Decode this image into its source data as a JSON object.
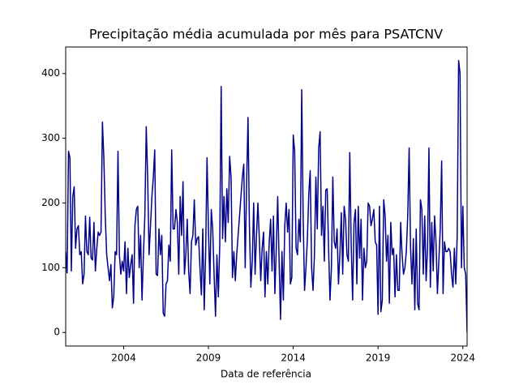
{
  "chart_data": {
    "type": "line",
    "title": "Precipitação média acumulada por mês para PSATCNV",
    "x_label": "Data de referência",
    "x": [
      "2000-08",
      "2000-09",
      "2000-10",
      "2000-11",
      "2000-12",
      "2001-01",
      "2001-02",
      "2001-03",
      "2001-04",
      "2001-05",
      "2001-06",
      "2001-07",
      "2001-08",
      "2001-09",
      "2001-10",
      "2001-11",
      "2001-12",
      "2002-01",
      "2002-02",
      "2002-03",
      "2002-04",
      "2002-05",
      "2002-06",
      "2002-07",
      "2002-08",
      "2002-09",
      "2002-10",
      "2002-11",
      "2002-12",
      "2003-01",
      "2003-02",
      "2003-03",
      "2003-04",
      "2003-05",
      "2003-06",
      "2003-07",
      "2003-08",
      "2003-09",
      "2003-10",
      "2003-11",
      "2003-12",
      "2004-01",
      "2004-02",
      "2004-03",
      "2004-04",
      "2004-05",
      "2004-06",
      "2004-07",
      "2004-08",
      "2004-09",
      "2004-10",
      "2004-11",
      "2004-12",
      "2005-01",
      "2005-02",
      "2005-03",
      "2005-04",
      "2005-05",
      "2005-06",
      "2005-07",
      "2005-08",
      "2005-09",
      "2005-10",
      "2005-11",
      "2005-12",
      "2006-01",
      "2006-02",
      "2006-03",
      "2006-04",
      "2006-05",
      "2006-06",
      "2006-07",
      "2006-08",
      "2006-09",
      "2006-10",
      "2006-11",
      "2006-12",
      "2007-01",
      "2007-02",
      "2007-03",
      "2007-04",
      "2007-05",
      "2007-06",
      "2007-07",
      "2007-08",
      "2007-09",
      "2007-10",
      "2007-11",
      "2007-12",
      "2008-01",
      "2008-02",
      "2008-03",
      "2008-04",
      "2008-05",
      "2008-06",
      "2008-07",
      "2008-08",
      "2008-09",
      "2008-10",
      "2008-11",
      "2008-12",
      "2009-01",
      "2009-02",
      "2009-03",
      "2009-04",
      "2009-05",
      "2009-06",
      "2009-07",
      "2009-08",
      "2009-09",
      "2009-10",
      "2009-11",
      "2009-12",
      "2010-01",
      "2010-02",
      "2010-03",
      "2010-04",
      "2010-05",
      "2010-06",
      "2010-07",
      "2010-08",
      "2010-09",
      "2010-10",
      "2010-11",
      "2010-12",
      "2011-01",
      "2011-02",
      "2011-03",
      "2011-04",
      "2011-05",
      "2011-06",
      "2011-07",
      "2011-08",
      "2011-09",
      "2011-10",
      "2011-11",
      "2011-12",
      "2012-01",
      "2012-02",
      "2012-03",
      "2012-04",
      "2012-05",
      "2012-06",
      "2012-07",
      "2012-08",
      "2012-09",
      "2012-10",
      "2012-11",
      "2012-12",
      "2013-01",
      "2013-02",
      "2013-03",
      "2013-04",
      "2013-05",
      "2013-06",
      "2013-07",
      "2013-08",
      "2013-09",
      "2013-10",
      "2013-11",
      "2013-12",
      "2014-01",
      "2014-02",
      "2014-03",
      "2014-04",
      "2014-05",
      "2014-06",
      "2014-07",
      "2014-08",
      "2014-09",
      "2014-10",
      "2014-11",
      "2014-12",
      "2015-01",
      "2015-02",
      "2015-03",
      "2015-04",
      "2015-05",
      "2015-06",
      "2015-07",
      "2015-08",
      "2015-09",
      "2015-10",
      "2015-11",
      "2015-12",
      "2016-01",
      "2016-02",
      "2016-03",
      "2016-04",
      "2016-05",
      "2016-06",
      "2016-07",
      "2016-08",
      "2016-09",
      "2016-10",
      "2016-11",
      "2016-12",
      "2017-01",
      "2017-02",
      "2017-03",
      "2017-04",
      "2017-05",
      "2017-06",
      "2017-07",
      "2017-08",
      "2017-09",
      "2017-10",
      "2017-11",
      "2017-12",
      "2018-01",
      "2018-02",
      "2018-03",
      "2018-04",
      "2018-05",
      "2018-06",
      "2018-07",
      "2018-08",
      "2018-09",
      "2018-10",
      "2018-11",
      "2018-12",
      "2019-01",
      "2019-02",
      "2019-03",
      "2019-04",
      "2019-05",
      "2019-06",
      "2019-07",
      "2019-08",
      "2019-09",
      "2019-10",
      "2019-11",
      "2019-12",
      "2020-01",
      "2020-02",
      "2020-03",
      "2020-04",
      "2020-05",
      "2020-06",
      "2020-07",
      "2020-08",
      "2020-09",
      "2020-10",
      "2020-11",
      "2020-12",
      "2021-01",
      "2021-02",
      "2021-03",
      "2021-04",
      "2021-05",
      "2021-06",
      "2021-07",
      "2021-08",
      "2021-09",
      "2021-10",
      "2021-11",
      "2021-12",
      "2022-01",
      "2022-02",
      "2022-03",
      "2022-04",
      "2022-05",
      "2022-06",
      "2022-07",
      "2022-08",
      "2022-09",
      "2022-10",
      "2022-11",
      "2022-12",
      "2023-01",
      "2023-02",
      "2023-03",
      "2023-04",
      "2023-05",
      "2023-06",
      "2023-07",
      "2023-08",
      "2023-09",
      "2023-10",
      "2023-11",
      "2023-12",
      "2024-01",
      "2024-02",
      "2024-03",
      "2024-04"
    ],
    "values": [
      125,
      92,
      280,
      270,
      95,
      210,
      225,
      130,
      160,
      165,
      120,
      125,
      75,
      90,
      180,
      125,
      120,
      178,
      115,
      112,
      170,
      95,
      130,
      155,
      150,
      155,
      325,
      270,
      180,
      120,
      100,
      80,
      105,
      38,
      55,
      125,
      120,
      280,
      120,
      90,
      110,
      95,
      140,
      60,
      130,
      85,
      105,
      120,
      45,
      165,
      190,
      195,
      100,
      150,
      50,
      120,
      180,
      318,
      240,
      120,
      165,
      210,
      240,
      282,
      90,
      88,
      160,
      120,
      150,
      30,
      25,
      75,
      80,
      135,
      110,
      282,
      160,
      160,
      190,
      170,
      90,
      210,
      150,
      233,
      90,
      120,
      175,
      95,
      60,
      140,
      150,
      205,
      135,
      145,
      148,
      100,
      58,
      160,
      35,
      120,
      270,
      160,
      75,
      190,
      160,
      90,
      25,
      120,
      55,
      135,
      380,
      145,
      210,
      140,
      222,
      170,
      272,
      240,
      85,
      125,
      80,
      120,
      150,
      180,
      210,
      240,
      260,
      100,
      230,
      332,
      165,
      70,
      110,
      200,
      90,
      150,
      200,
      145,
      80,
      130,
      155,
      55,
      125,
      75,
      140,
      175,
      95,
      180,
      60,
      130,
      210,
      110,
      20,
      125,
      50,
      165,
      200,
      155,
      190,
      75,
      85,
      305,
      280,
      130,
      120,
      175,
      140,
      375,
      180,
      65,
      100,
      145,
      215,
      250,
      100,
      65,
      120,
      240,
      160,
      285,
      310,
      150,
      195,
      110,
      220,
      222,
      130,
      50,
      100,
      240,
      140,
      130,
      160,
      75,
      120,
      185,
      90,
      195,
      175,
      120,
      110,
      278,
      135,
      50,
      170,
      190,
      75,
      195,
      115,
      175,
      50,
      130,
      100,
      110,
      200,
      195,
      165,
      175,
      190,
      140,
      135,
      28,
      195,
      32,
      50,
      205,
      180,
      110,
      150,
      45,
      170,
      120,
      130,
      55,
      120,
      65,
      65,
      170,
      120,
      90,
      100,
      125,
      180,
      285,
      130,
      75,
      145,
      35,
      160,
      45,
      35,
      205,
      190,
      90,
      180,
      80,
      130,
      285,
      70,
      170,
      95,
      180,
      140,
      60,
      110,
      160,
      265,
      60,
      140,
      125,
      125,
      130,
      125,
      90,
      70,
      130,
      75,
      150,
      420,
      400,
      100,
      195,
      100,
      90,
      0
    ],
    "color": "#00008b",
    "xlim": [
      "2000-08",
      "2024-04"
    ],
    "xticks": [
      2004,
      2009,
      2014,
      2019,
      2024
    ],
    "ylim": [
      -21,
      441
    ],
    "yticks": [
      0,
      100,
      200,
      300,
      400
    ],
    "grid": false
  }
}
